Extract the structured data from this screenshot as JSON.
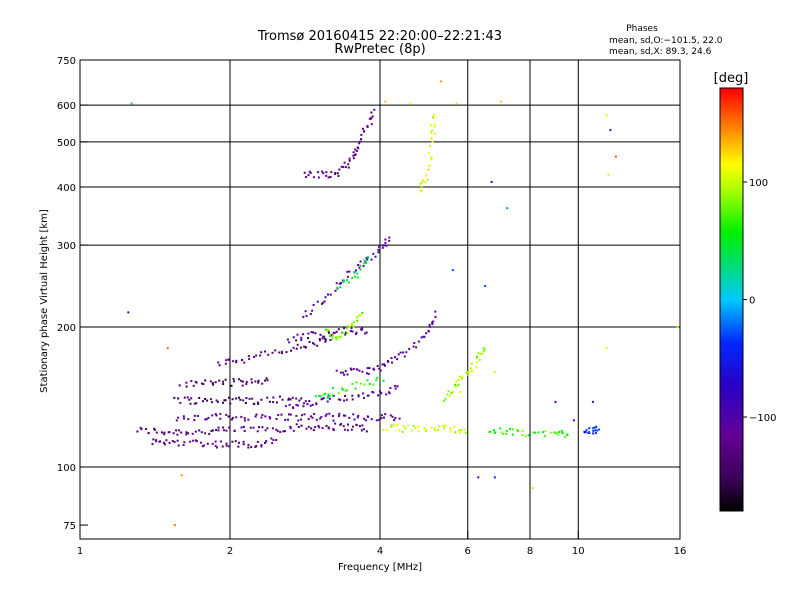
{
  "chart_data": {
    "type": "scatter",
    "title": "Tromsø 20160415 22:20:00–22:21:43",
    "subtitle": "RwPretec (8p)",
    "xlabel": "Frequency [MHz]",
    "ylabel": "Stationary phase Virtual Height [km]",
    "xscale": "log",
    "yscale": "log",
    "xlim": [
      1,
      16
    ],
    "ylim": [
      70,
      750
    ],
    "x_ticks": [
      1,
      2,
      4,
      6,
      8,
      10,
      16
    ],
    "x_tick_labels": [
      "1",
      "2",
      "4",
      "6",
      "8",
      "10",
      "16"
    ],
    "x_grid": [
      2,
      4,
      6,
      8,
      10,
      16
    ],
    "y_ticks": [
      75,
      100,
      200,
      300,
      400,
      500,
      600,
      750
    ],
    "y_tick_labels": [
      "75",
      "100",
      "200",
      "300",
      "400",
      "500",
      "600",
      "750"
    ],
    "y_grid": [
      100,
      200,
      300,
      400,
      500,
      600
    ],
    "grid": true,
    "phase_info": {
      "title": "Phases",
      "line_o": "mean, sd,O:−101.5, 22.0",
      "line_x": "mean, sd,X:  89.3, 24.6"
    },
    "colorbar": {
      "label": "[deg]",
      "range": [
        -180,
        180
      ],
      "ticks": [
        100,
        0,
        -100
      ],
      "tick_labels": [
        "100",
        "0",
        "−100"
      ],
      "colormap": "rainbow (black→purple→blue→cyan→green→yellow→red)"
    },
    "traces": [
      {
        "points": [
          [
            1.3,
            120
          ],
          [
            1.45,
            119
          ],
          [
            1.6,
            119
          ],
          [
            1.8,
            119
          ],
          [
            2.0,
            120
          ],
          [
            2.3,
            121
          ],
          [
            2.6,
            121
          ],
          [
            2.9,
            122
          ],
          [
            3.2,
            122
          ],
          [
            3.5,
            122
          ],
          [
            3.8,
            121
          ]
        ],
        "phase": -130
      },
      {
        "points": [
          [
            1.4,
            113
          ],
          [
            1.5,
            113
          ],
          [
            1.7,
            113
          ],
          [
            1.9,
            112
          ],
          [
            2.1,
            112
          ],
          [
            2.3,
            112
          ],
          [
            2.5,
            115
          ]
        ],
        "phase": -125
      },
      {
        "points": [
          [
            1.55,
            126
          ],
          [
            1.8,
            128
          ],
          [
            2.0,
            128
          ],
          [
            2.3,
            128
          ],
          [
            2.6,
            128
          ],
          [
            2.9,
            128
          ],
          [
            3.2,
            128
          ],
          [
            3.6,
            128
          ],
          [
            4.0,
            128
          ],
          [
            4.4,
            128
          ]
        ],
        "phase": -115
      },
      {
        "points": [
          [
            1.55,
            140
          ],
          [
            1.7,
            139
          ],
          [
            1.9,
            139
          ],
          [
            2.1,
            139
          ],
          [
            2.3,
            139
          ],
          [
            2.6,
            140
          ],
          [
            2.9,
            140
          ]
        ],
        "phase": -140
      },
      {
        "points": [
          [
            1.6,
            150
          ],
          [
            1.8,
            152
          ],
          [
            2.0,
            152
          ],
          [
            2.2,
            152
          ],
          [
            2.4,
            153
          ]
        ],
        "phase": -140
      },
      {
        "points": [
          [
            1.9,
            168
          ],
          [
            2.1,
            170
          ],
          [
            2.4,
            175
          ],
          [
            2.7,
            180
          ],
          [
            3.0,
            185
          ],
          [
            3.2,
            190
          ]
        ],
        "phase": -130
      },
      {
        "points": [
          [
            2.6,
            134
          ],
          [
            2.9,
            136
          ],
          [
            3.2,
            140
          ],
          [
            3.6,
            142
          ],
          [
            4.0,
            145
          ],
          [
            4.4,
            148
          ]
        ],
        "phase": -105
      },
      {
        "points": [
          [
            2.6,
            188
          ],
          [
            2.9,
            192
          ],
          [
            3.2,
            195
          ],
          [
            3.5,
            196
          ],
          [
            3.8,
            196
          ]
        ],
        "phase": -120
      },
      {
        "points": [
          [
            3.3,
            160
          ],
          [
            3.6,
            160
          ],
          [
            3.9,
            162
          ],
          [
            4.2,
            168
          ],
          [
            4.6,
            178
          ],
          [
            5.0,
            195
          ],
          [
            5.2,
            215
          ]
        ],
        "phase": -110
      },
      {
        "points": [
          [
            2.8,
            210
          ],
          [
            3.1,
            230
          ],
          [
            3.4,
            255
          ],
          [
            3.7,
            275
          ],
          [
            4.0,
            295
          ],
          [
            4.2,
            310
          ]
        ],
        "phase": -110
      },
      {
        "points": [
          [
            2.8,
            425
          ],
          [
            3.1,
            425
          ],
          [
            3.3,
            430
          ],
          [
            3.5,
            455
          ],
          [
            3.6,
            495
          ],
          [
            3.8,
            540
          ],
          [
            3.9,
            590
          ]
        ],
        "phase": -120
      },
      {
        "points": [
          [
            4.1,
            121
          ],
          [
            4.5,
            121
          ],
          [
            5.0,
            121
          ],
          [
            5.5,
            121
          ],
          [
            6.0,
            120
          ]
        ],
        "phase": 100
      },
      {
        "points": [
          [
            6.6,
            119
          ],
          [
            7.2,
            119
          ],
          [
            8.0,
            118
          ],
          [
            9.0,
            118
          ],
          [
            9.6,
            118
          ]
        ],
        "phase": 70
      },
      {
        "points": [
          [
            10.3,
            120
          ],
          [
            10.7,
            120
          ],
          [
            11.0,
            120
          ]
        ],
        "phase": -40
      },
      {
        "points": [
          [
            3.1,
            195
          ],
          [
            3.3,
            190
          ],
          [
            3.5,
            200
          ],
          [
            3.7,
            215
          ]
        ],
        "phase": 80
      },
      {
        "points": [
          [
            5.4,
            140
          ],
          [
            5.7,
            150
          ],
          [
            6.0,
            160
          ],
          [
            6.3,
            170
          ],
          [
            6.5,
            185
          ]
        ],
        "phase": 90
      },
      {
        "points": [
          [
            3.0,
            140
          ],
          [
            3.2,
            145
          ],
          [
            3.6,
            150
          ],
          [
            4.1,
            155
          ]
        ],
        "phase": 60
      },
      {
        "points": [
          [
            4.8,
            390
          ],
          [
            5.0,
            420
          ],
          [
            5.1,
            520
          ],
          [
            5.1,
            580
          ]
        ],
        "phase": 110
      },
      {
        "points": [
          [
            3.3,
            245
          ],
          [
            3.6,
            260
          ],
          [
            3.8,
            285
          ]
        ],
        "phase": 40
      }
    ],
    "scatter": [
      {
        "x": 1.27,
        "y": 605,
        "phase": 10
      },
      {
        "x": 1.25,
        "y": 215,
        "phase": -90
      },
      {
        "x": 1.55,
        "y": 75,
        "phase": 150
      },
      {
        "x": 1.6,
        "y": 96,
        "phase": 140
      },
      {
        "x": 1.5,
        "y": 180,
        "phase": 150
      },
      {
        "x": 6.5,
        "y": 245,
        "phase": -30
      },
      {
        "x": 7.2,
        "y": 360,
        "phase": -10
      },
      {
        "x": 11.4,
        "y": 570,
        "phase": 120
      },
      {
        "x": 11.6,
        "y": 530,
        "phase": -120
      },
      {
        "x": 11.9,
        "y": 465,
        "phase": 160
      },
      {
        "x": 11.5,
        "y": 425,
        "phase": 100
      },
      {
        "x": 11.4,
        "y": 180,
        "phase": 110
      },
      {
        "x": 15.8,
        "y": 200,
        "phase": 90
      },
      {
        "x": 8.1,
        "y": 90,
        "phase": 90
      },
      {
        "x": 6.8,
        "y": 95,
        "phase": -40
      },
      {
        "x": 6.3,
        "y": 95,
        "phase": -100
      },
      {
        "x": 5.7,
        "y": 605,
        "phase": 100
      },
      {
        "x": 4.1,
        "y": 610,
        "phase": 130
      },
      {
        "x": 4.6,
        "y": 605,
        "phase": 110
      },
      {
        "x": 5.3,
        "y": 675,
        "phase": 140
      },
      {
        "x": 7.0,
        "y": 610,
        "phase": 130
      },
      {
        "x": 5.6,
        "y": 265,
        "phase": -30
      },
      {
        "x": 6.7,
        "y": 410,
        "phase": -90
      },
      {
        "x": 9.8,
        "y": 126,
        "phase": -110
      },
      {
        "x": 10.7,
        "y": 138,
        "phase": -90
      },
      {
        "x": 9.0,
        "y": 138,
        "phase": -120
      },
      {
        "x": 5.8,
        "y": 145,
        "phase": 110
      },
      {
        "x": 6.8,
        "y": 160,
        "phase": 105
      }
    ]
  }
}
